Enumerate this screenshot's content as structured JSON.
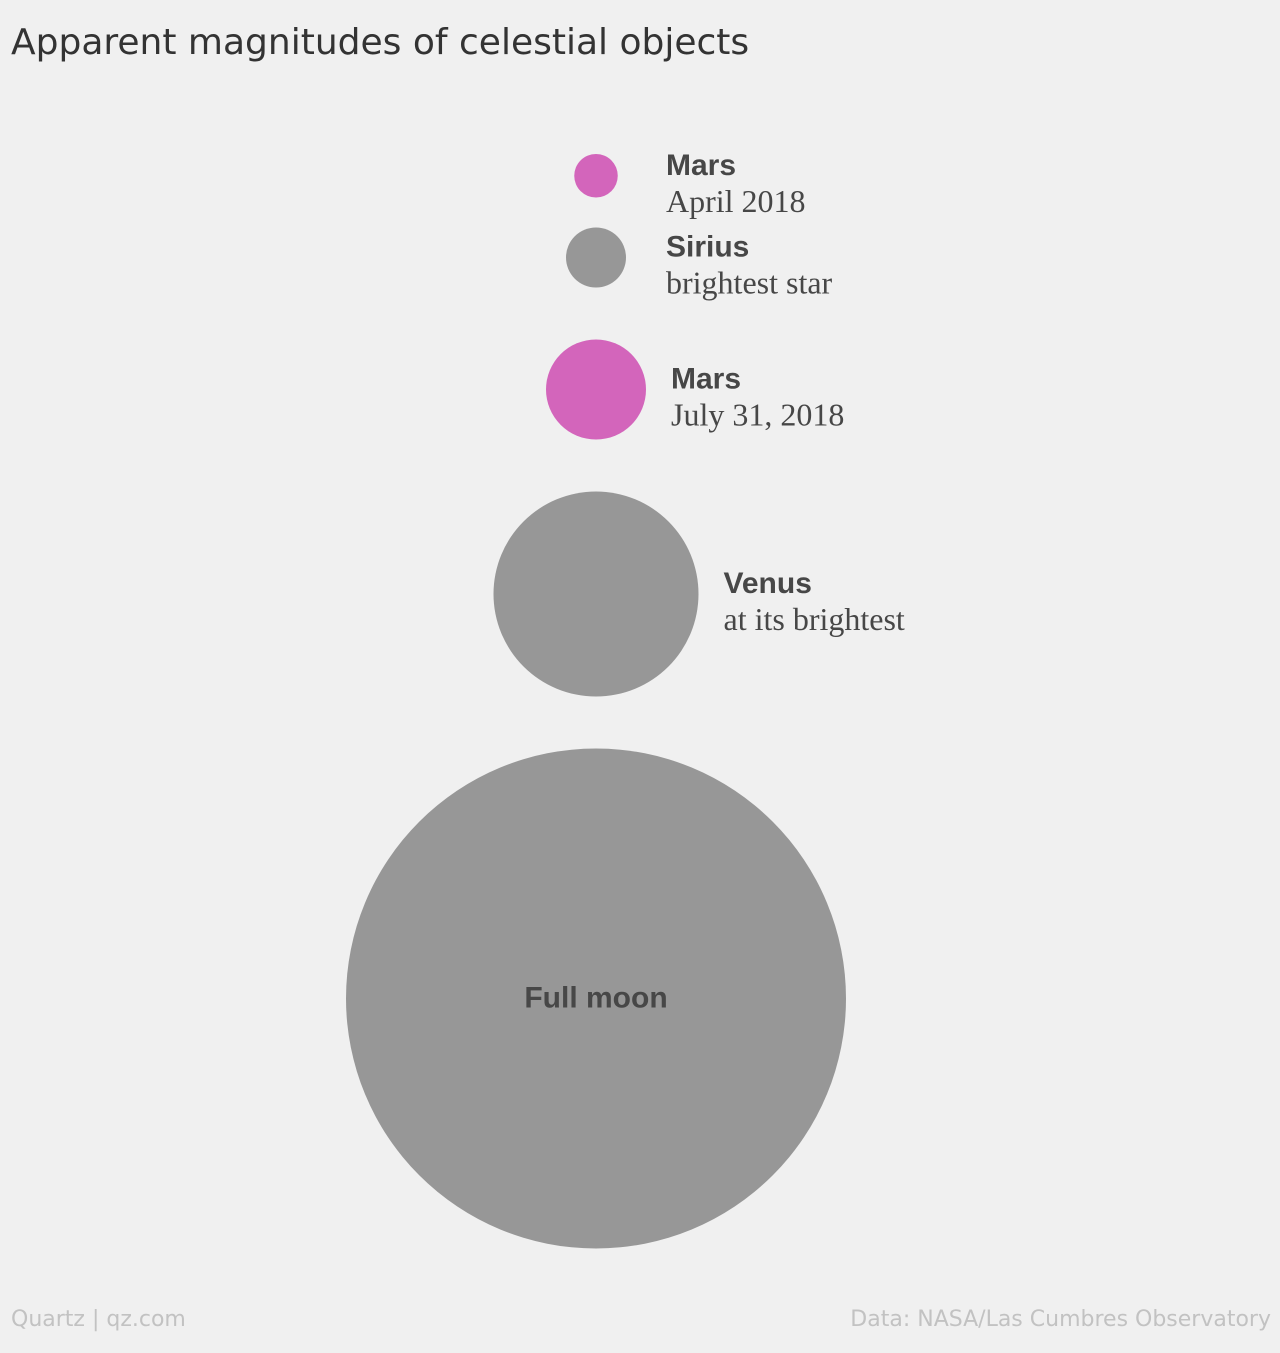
{
  "chart_data": {
    "type": "bubble",
    "title": "Apparent magnitudes of celestial objects",
    "label_placement": "right of each circle; inside circle for Full moon",
    "objects": [
      {
        "name": "Mars",
        "sublabel": "April 2018",
        "relative_size": 0.087,
        "color": "#d365bb"
      },
      {
        "name": "Sirius",
        "sublabel": "brightest star",
        "relative_size": 0.12,
        "color": "#979797"
      },
      {
        "name": "Mars",
        "sublabel": "July 31, 2018",
        "relative_size": 0.2,
        "color": "#d365bb"
      },
      {
        "name": "Venus",
        "sublabel": "at its brightest",
        "relative_size": 0.41,
        "color": "#979797"
      },
      {
        "name": "Full moon",
        "sublabel": "",
        "relative_size": 1.0,
        "color": "#979797"
      }
    ]
  },
  "footer": {
    "source_left": "Quartz | qz.com",
    "source_right": "Data: NASA/Las Cumbres Observatory"
  }
}
